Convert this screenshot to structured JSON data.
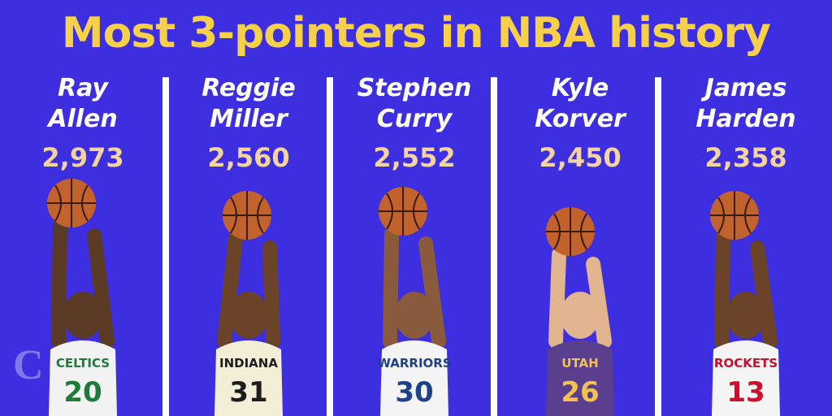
{
  "chart_data": {
    "type": "bar",
    "title": "Most 3-pointers in NBA history",
    "categories": [
      "Ray Allen",
      "Reggie Miller",
      "Stephen Curry",
      "Kyle Korver",
      "James Harden"
    ],
    "name_lines": [
      [
        "Ray",
        "Allen"
      ],
      [
        "Reggie",
        "Miller"
      ],
      [
        "Stephen",
        "Curry"
      ],
      [
        "Kyle",
        "Korver"
      ],
      [
        "James",
        "Harden"
      ]
    ],
    "values": [
      2973,
      2560,
      2552,
      2450,
      2358
    ],
    "value_labels": [
      "2,973",
      "2,560",
      "2,552",
      "2,450",
      "2,358"
    ]
  },
  "players": [
    {
      "jersey_text": "CELTICS",
      "number": "20",
      "jersey_color": "#f2f2f2",
      "text_color": "#1f7a3a",
      "skin": "#5b3a26"
    },
    {
      "jersey_text": "INDIANA",
      "number": "31",
      "jersey_color": "#f3eed6",
      "text_color": "#1d1d1d",
      "skin": "#6a4328"
    },
    {
      "jersey_text": "WARRIORS",
      "number": "30",
      "jersey_color": "#f4f4f4",
      "text_color": "#1d428a",
      "skin": "#8a5a3c"
    },
    {
      "jersey_text": "UTAH",
      "number": "26",
      "jersey_color": "#5b3f8f",
      "text_color": "#f2c14e",
      "skin": "#e2b48f"
    },
    {
      "jersey_text": "ROCKETS",
      "number": "13",
      "jersey_color": "#f4f4f4",
      "text_color": "#c8102e",
      "skin": "#6b4329"
    }
  ],
  "colors": {
    "background": "#3d2fe0",
    "title": "#f7d04a",
    "value": "#f3d3a0",
    "divider": "#ffffff",
    "ball": "#c2622d"
  },
  "watermark": "C"
}
